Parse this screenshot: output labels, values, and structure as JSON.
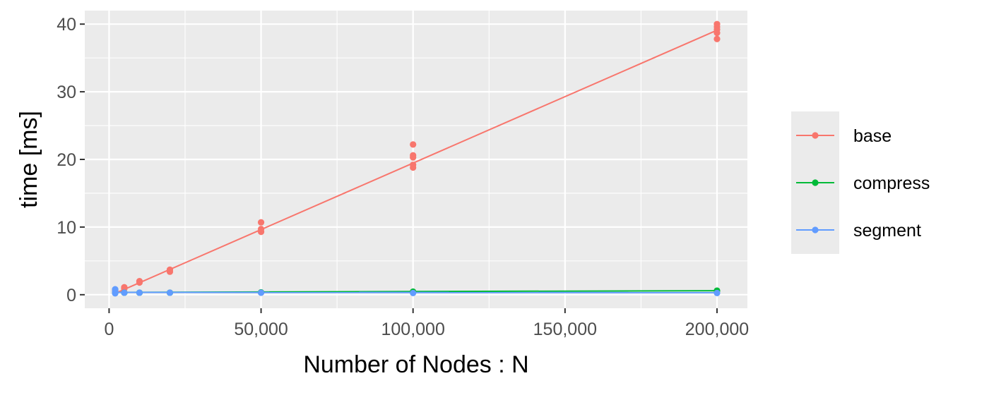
{
  "chart_data": {
    "type": "line",
    "title": "",
    "xlabel": "Number of Nodes : N",
    "ylabel": "time [ms]",
    "xlim": [
      -8000,
      210000
    ],
    "ylim": [
      -2,
      42
    ],
    "x_ticks": [
      0,
      50000,
      100000,
      150000,
      200000
    ],
    "x_tick_labels": [
      "0",
      "50,000",
      "100,000",
      "150,000",
      "200,000"
    ],
    "y_ticks": [
      0,
      10,
      20,
      30,
      40
    ],
    "y_tick_labels": [
      "0",
      "10",
      "20",
      "30",
      "40"
    ],
    "grid": true,
    "legend_position": "right",
    "series": [
      {
        "name": "base",
        "color": "#F8766D",
        "line": [
          [
            2000,
            0.2
          ],
          [
            200000,
            39.1
          ]
        ],
        "points": [
          [
            2000,
            0.3
          ],
          [
            2000,
            0.5
          ],
          [
            2000,
            0.7
          ],
          [
            5000,
            0.9
          ],
          [
            5000,
            1.1
          ],
          [
            10000,
            1.8
          ],
          [
            10000,
            2.0
          ],
          [
            20000,
            3.4
          ],
          [
            20000,
            3.7
          ],
          [
            50000,
            9.3
          ],
          [
            50000,
            9.7
          ],
          [
            50000,
            10.7
          ],
          [
            100000,
            18.8
          ],
          [
            100000,
            19.2
          ],
          [
            100000,
            20.3
          ],
          [
            100000,
            20.6
          ],
          [
            100000,
            22.2
          ],
          [
            200000,
            37.8
          ],
          [
            200000,
            38.7
          ],
          [
            200000,
            39.2
          ],
          [
            200000,
            39.6
          ],
          [
            200000,
            40.0
          ]
        ]
      },
      {
        "name": "compress",
        "color": "#00BA38",
        "line": [
          [
            2000,
            0.35
          ],
          [
            200000,
            0.6
          ]
        ],
        "points": [
          [
            2000,
            0.3
          ],
          [
            5000,
            0.3
          ],
          [
            10000,
            0.3
          ],
          [
            20000,
            0.3
          ],
          [
            50000,
            0.35
          ],
          [
            100000,
            0.45
          ],
          [
            200000,
            0.6
          ]
        ]
      },
      {
        "name": "segment",
        "color": "#619CFF",
        "line": [
          [
            2000,
            0.35
          ],
          [
            200000,
            0.3
          ]
        ],
        "points": [
          [
            2000,
            0.2
          ],
          [
            2000,
            0.5
          ],
          [
            2000,
            0.8
          ],
          [
            5000,
            0.3
          ],
          [
            10000,
            0.3
          ],
          [
            20000,
            0.3
          ],
          [
            50000,
            0.3
          ],
          [
            100000,
            0.25
          ],
          [
            200000,
            0.25
          ]
        ]
      }
    ]
  }
}
